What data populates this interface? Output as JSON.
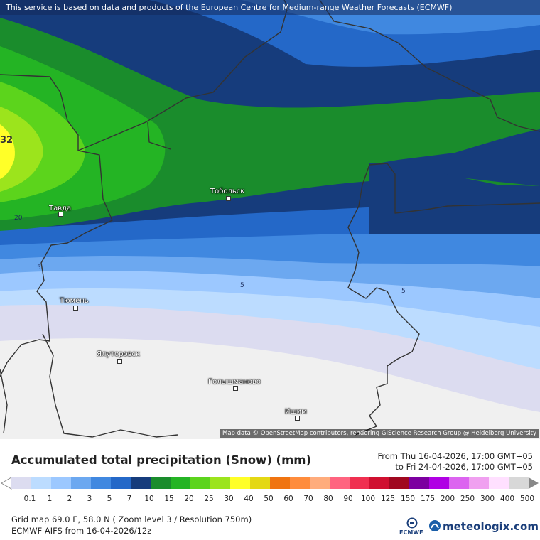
{
  "banner": "This service is based on data and products of the European Centre for Medium-range Weather Forecasts (ECMWF)",
  "attribution": "Map data © OpenStreetMap contributors, rendering GIScience Research Group @ Heidelberg University",
  "map": {
    "peak_label": "32",
    "cities": [
      {
        "name": "Тобольск"
      },
      {
        "name": "Тавда"
      },
      {
        "name": "Тюмень"
      },
      {
        "name": "Ялуторовск"
      },
      {
        "name": "Голышманово"
      },
      {
        "name": "Ишим"
      }
    ],
    "contour_labels": [
      "20",
      "5",
      "5",
      "5"
    ]
  },
  "title": "Accumulated total precipitation (Snow) (mm)",
  "period": {
    "from": "From Thu 16-04-2026, 17:00 GMT+05",
    "to": "to Fri 24-04-2026, 17:00 GMT+05"
  },
  "legend": {
    "values": [
      "0.1",
      "1",
      "2",
      "3",
      "5",
      "7",
      "10",
      "15",
      "20",
      "25",
      "30",
      "40",
      "50",
      "60",
      "70",
      "80",
      "90",
      "100",
      "125",
      "150",
      "175",
      "200",
      "250",
      "300",
      "400",
      "500"
    ],
    "colors": [
      "#dcdcf0",
      "#bcdcff",
      "#9cc8ff",
      "#6ca8f0",
      "#4088e0",
      "#2468c8",
      "#163c7c",
      "#1a8c2c",
      "#24b424",
      "#5cd41c",
      "#9ce41c",
      "#ffff28",
      "#e4d814",
      "#f07410",
      "#ff8c3c",
      "#ffac7c",
      "#ff6480",
      "#f03050",
      "#d01030",
      "#a00820",
      "#7c00a0",
      "#b000e4",
      "#dc64f0",
      "#f0a0f0",
      "#ffe0ff",
      "#d8d8d8"
    ]
  },
  "footer": {
    "line1": "Grid map 69.0 E, 58.0 N ( Zoom level 3 / Resolution 750m)",
    "line2": "ECMWF AIFS from  16-04-2026/12z"
  },
  "brand": "meteologix.com",
  "brand_small": "ECMWF"
}
